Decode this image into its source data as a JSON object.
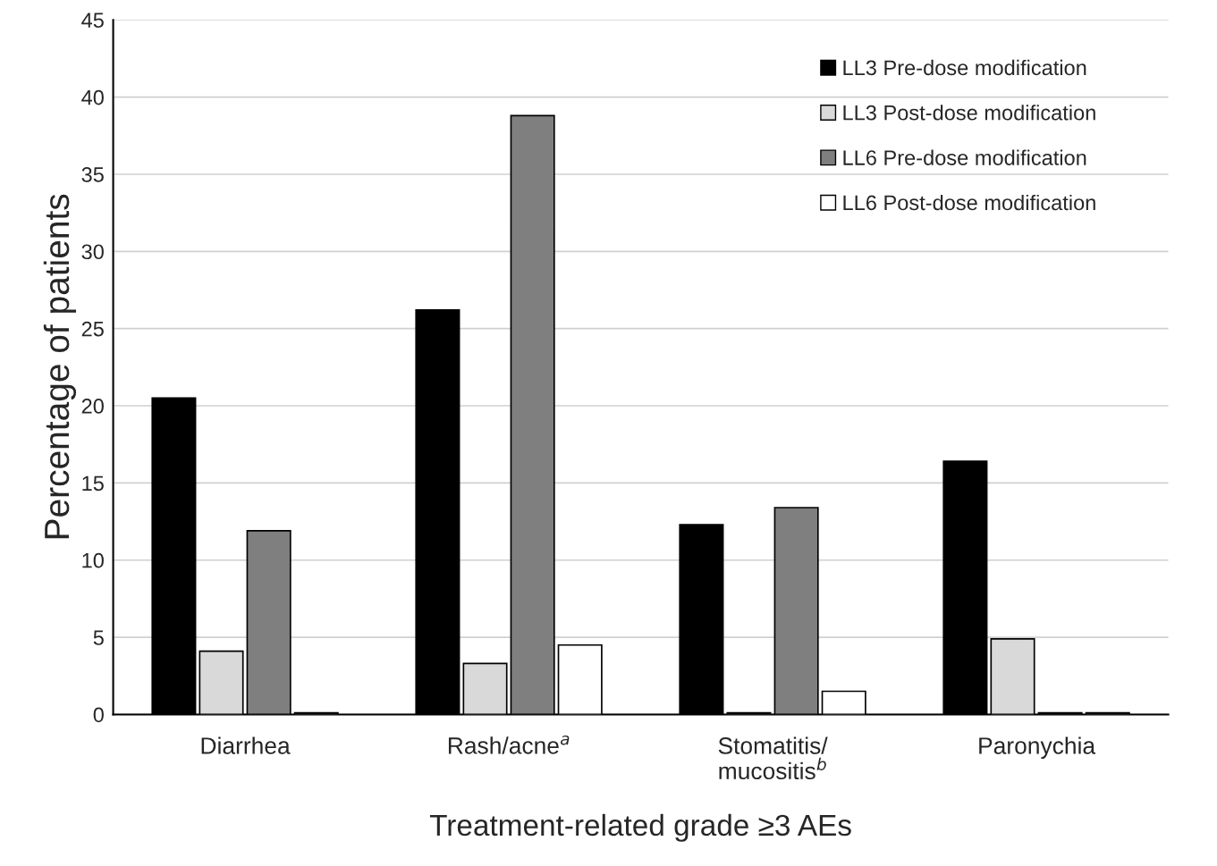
{
  "chart_data": {
    "type": "bar",
    "xlabel": "Treatment-related grade ≥3 AEs",
    "ylabel": "Percentage of patients",
    "categories": [
      "Diarrhea",
      "Rash/acne$^{a}$",
      "Stomatitis/\nmucositis$^{b}$",
      "Paronychia"
    ],
    "series": [
      {
        "name": "LL3 Pre-dose modification",
        "color": "#000000",
        "values": [
          20.5,
          26.2,
          12.3,
          16.4
        ]
      },
      {
        "name": "LL3 Post-dose modification",
        "color": "#d9d9d9",
        "values": [
          4.1,
          3.3,
          0.1,
          4.9
        ]
      },
      {
        "name": "LL6 Pre-dose modification",
        "color": "#7f7f7f",
        "values": [
          11.9,
          38.8,
          13.4,
          0.1
        ]
      },
      {
        "name": "LL6 Post-dose modification",
        "color": "#ffffff",
        "values": [
          0.1,
          4.5,
          1.5,
          0.1
        ]
      }
    ],
    "ylim": [
      0,
      45
    ],
    "yticks": [
      0,
      5,
      10,
      15,
      20,
      25,
      30,
      35,
      40,
      45
    ],
    "grid": "y",
    "legend": "top right"
  }
}
